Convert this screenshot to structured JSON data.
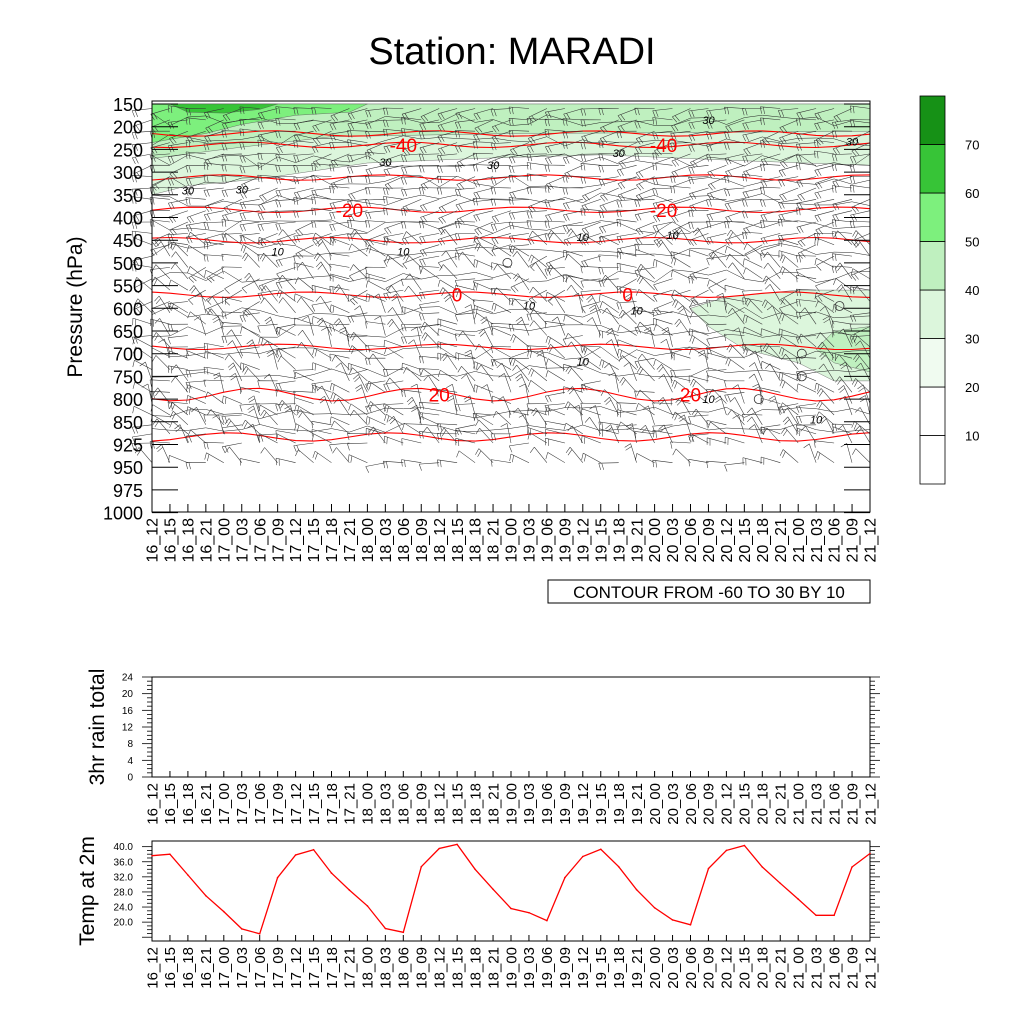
{
  "title": "Station: MARADI",
  "time_labels": [
    "16_12",
    "16_15",
    "16_18",
    "16_21",
    "17_00",
    "17_03",
    "17_06",
    "17_09",
    "17_12",
    "17_15",
    "17_18",
    "17_21",
    "18_00",
    "18_03",
    "18_06",
    "18_09",
    "18_12",
    "18_15",
    "18_18",
    "18_21",
    "19_00",
    "19_03",
    "19_06",
    "19_09",
    "19_12",
    "19_15",
    "19_18",
    "19_21",
    "20_00",
    "20_03",
    "20_06",
    "20_09",
    "20_12",
    "20_15",
    "20_18",
    "20_21",
    "21_00",
    "21_03",
    "21_06",
    "21_09",
    "21_12"
  ],
  "chart_data": [
    {
      "type": "contour",
      "name": "cross-section",
      "ylabel": "Pressure (hPa)",
      "pressure_levels": [
        150,
        200,
        250,
        300,
        350,
        400,
        450,
        500,
        550,
        600,
        650,
        700,
        750,
        800,
        850,
        925,
        950,
        975,
        1000
      ],
      "contour_note": "CONTOUR FROM -60 TO 30 BY 10",
      "temperature_contours": [
        {
          "label": "-40",
          "pressure": 240
        },
        {
          "label": "-20",
          "pressure": 383
        },
        {
          "label": "0",
          "pressure": 570
        },
        {
          "label": "20",
          "pressure": 790
        }
      ],
      "isoline_labels": [
        {
          "label": "30",
          "time_index": 2,
          "pressure": 340
        },
        {
          "label": "30",
          "time_index": 5,
          "pressure": 338
        },
        {
          "label": "30",
          "time_index": 13,
          "pressure": 278
        },
        {
          "label": "30",
          "time_index": 19,
          "pressure": 284
        },
        {
          "label": "30",
          "time_index": 26,
          "pressure": 258
        },
        {
          "label": "30",
          "time_index": 31,
          "pressure": 185
        },
        {
          "label": "30",
          "time_index": 39,
          "pressure": 233
        },
        {
          "label": "10",
          "time_index": 7,
          "pressure": 475
        },
        {
          "label": "10",
          "time_index": 14,
          "pressure": 475
        },
        {
          "label": "10",
          "time_index": 24,
          "pressure": 443
        },
        {
          "label": "10",
          "time_index": 29,
          "pressure": 438
        },
        {
          "label": "10",
          "time_index": 21,
          "pressure": 594
        },
        {
          "label": "10",
          "time_index": 27,
          "pressure": 605
        },
        {
          "label": "10",
          "time_index": 24,
          "pressure": 717
        },
        {
          "label": "10",
          "time_index": 31,
          "pressure": 800
        },
        {
          "label": "10",
          "time_index": 37,
          "pressure": 845
        }
      ],
      "colorbar": {
        "levels": [
          10,
          20,
          30,
          40,
          50,
          60,
          70
        ],
        "colors": [
          "#ffffff",
          "#ffffff",
          "#f0fbf0",
          "#dcf6dc",
          "#bff0bf",
          "#7df07d",
          "#37c437",
          "#169116"
        ]
      }
    },
    {
      "type": "line",
      "name": "rain",
      "ylabel": "3hr rain total",
      "ylim": [
        0,
        24
      ],
      "yticks": [
        "0",
        "4",
        "8",
        "12",
        "16",
        "20",
        "24"
      ],
      "values": []
    },
    {
      "type": "line",
      "name": "temp",
      "ylabel": "Temp at 2m",
      "ylim": [
        15.0,
        41.5
      ],
      "yticks": [
        "20.0",
        "24.0",
        "28.0",
        "32.0",
        "36.0",
        "40.0"
      ],
      "line_color": "#ff0000",
      "values": [
        37.6,
        38.0,
        32.5,
        27.0,
        22.8,
        18.2,
        16.9,
        31.8,
        37.8,
        39.2,
        33.0,
        28.5,
        24.3,
        18.3,
        17.3,
        34.7,
        39.5,
        40.6,
        34.0,
        28.7,
        23.6,
        22.5,
        20.4,
        31.8,
        37.4,
        39.3,
        34.7,
        28.6,
        23.8,
        20.6,
        19.3,
        34.2,
        39.0,
        40.3,
        34.6,
        30.3,
        26.1,
        21.8,
        21.8,
        34.6,
        38.2
      ]
    }
  ]
}
